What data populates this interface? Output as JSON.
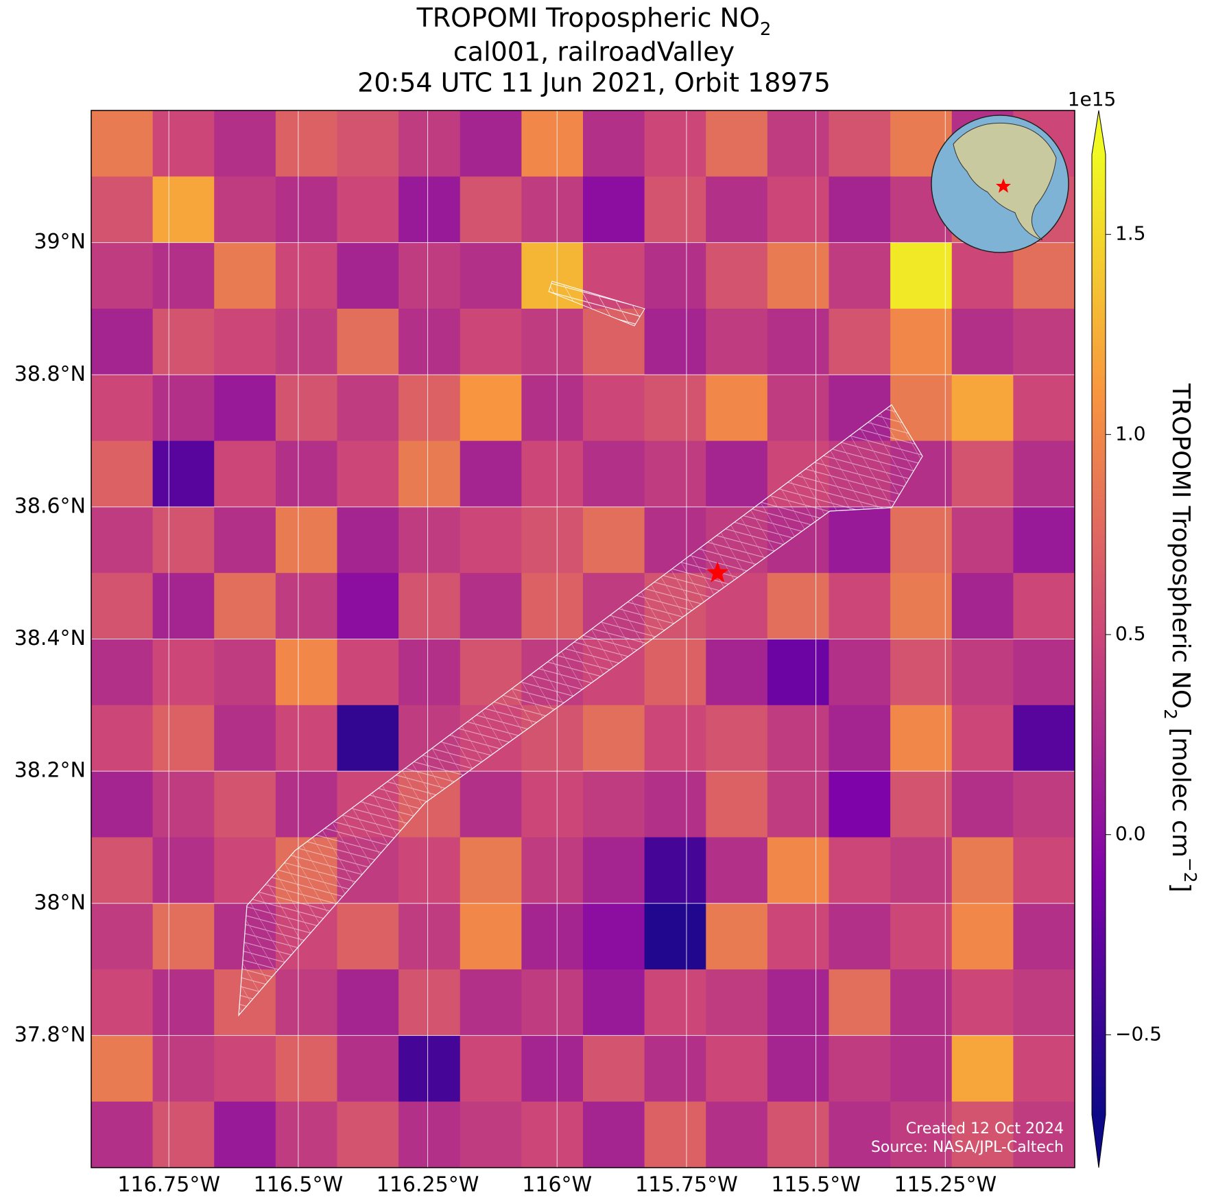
{
  "chart_data": {
    "type": "heatmap",
    "title": {
      "text": "TROPOMI Tropospheric NO",
      "sub": "2"
    },
    "subtitle": [
      "cal001, railroadValley",
      "20:54 UTC 11 Jun 2021, Orbit 18975"
    ],
    "xlim": [
      -116.9,
      -115.0
    ],
    "ylim": [
      37.6,
      39.2
    ],
    "xticks": [
      {
        "value": -116.75,
        "label": "116.75°W"
      },
      {
        "value": -116.5,
        "label": "116.5°W"
      },
      {
        "value": -116.25,
        "label": "116.25°W"
      },
      {
        "value": -116.0,
        "label": "116°W"
      },
      {
        "value": -115.75,
        "label": "115.75°W"
      },
      {
        "value": -115.5,
        "label": "115.5°W"
      },
      {
        "value": -115.25,
        "label": "115.25°W"
      }
    ],
    "yticks": [
      {
        "value": 39.0,
        "label": "39°N"
      },
      {
        "value": 38.8,
        "label": "38.8°N"
      },
      {
        "value": 38.6,
        "label": "38.6°N"
      },
      {
        "value": 38.4,
        "label": "38.4°N"
      },
      {
        "value": 38.2,
        "label": "38.2°N"
      },
      {
        "value": 38.0,
        "label": "38°N"
      },
      {
        "value": 37.8,
        "label": "37.8°N"
      }
    ],
    "grid": true,
    "colormap": "plasma",
    "clim": [
      -0.7,
      1.7
    ],
    "cbar_ticks": [
      {
        "value": -0.5,
        "label": "−0.5"
      },
      {
        "value": 0.0,
        "label": "0.0"
      },
      0.5,
      {
        "value": 1.0,
        "label": "1.0"
      },
      1.5
    ],
    "cbar_offset_label": "1e15",
    "cbar_label": {
      "text": "TROPOMI Tropospheric NO",
      "sub": "2",
      "rest": " [molec cm",
      "sup": "−2",
      "end": "]"
    },
    "site": {
      "lon": -115.69,
      "lat": 38.5
    },
    "cells": {
      "values": [
        [
          0.9,
          0.5,
          0.3,
          0.7,
          0.6,
          0.4,
          0.2,
          1.0,
          0.3,
          0.5,
          0.8,
          0.4,
          0.6,
          0.9,
          0.3,
          0.5
        ],
        [
          0.6,
          1.2,
          0.4,
          0.3,
          0.5,
          0.1,
          0.6,
          0.4,
          0.0,
          0.6,
          0.3,
          0.5,
          0.2,
          0.4,
          0.7,
          0.6
        ],
        [
          0.4,
          0.3,
          0.9,
          0.5,
          0.2,
          0.4,
          0.3,
          1.3,
          0.5,
          0.3,
          0.6,
          0.9,
          0.4,
          1.6,
          0.5,
          0.8
        ],
        [
          0.2,
          0.6,
          0.5,
          0.4,
          0.8,
          0.3,
          0.5,
          0.4,
          0.7,
          0.2,
          0.4,
          0.3,
          0.6,
          1.0,
          0.3,
          0.4
        ],
        [
          0.5,
          0.3,
          0.1,
          0.6,
          0.4,
          0.7,
          1.1,
          0.3,
          0.5,
          0.6,
          1.0,
          0.4,
          0.2,
          0.9,
          1.2,
          0.5
        ],
        [
          0.7,
          -0.3,
          0.5,
          0.3,
          0.5,
          0.9,
          0.2,
          0.5,
          0.3,
          0.4,
          0.2,
          0.5,
          0.4,
          0.3,
          0.6,
          0.3
        ],
        [
          0.4,
          0.6,
          0.3,
          0.9,
          0.2,
          0.4,
          0.5,
          0.6,
          0.8,
          0.3,
          0.4,
          0.3,
          0.1,
          0.8,
          0.4,
          0.1
        ],
        [
          0.6,
          0.2,
          0.8,
          0.4,
          0.0,
          0.6,
          0.3,
          0.7,
          0.4,
          0.6,
          0.5,
          0.8,
          0.5,
          0.9,
          0.2,
          0.5
        ],
        [
          0.3,
          0.5,
          0.4,
          1.0,
          0.5,
          0.3,
          0.6,
          0.4,
          0.5,
          0.7,
          0.2,
          -0.2,
          0.3,
          0.6,
          0.4,
          0.3
        ],
        [
          0.5,
          0.7,
          0.3,
          0.5,
          -0.5,
          0.4,
          0.5,
          0.6,
          0.8,
          0.5,
          0.6,
          0.4,
          0.2,
          1.0,
          0.5,
          -0.3
        ],
        [
          0.2,
          0.4,
          0.6,
          0.3,
          0.5,
          0.7,
          0.3,
          0.5,
          0.4,
          0.3,
          0.7,
          0.4,
          -0.1,
          0.6,
          0.3,
          0.4
        ],
        [
          0.6,
          0.3,
          0.5,
          0.8,
          0.4,
          0.5,
          0.9,
          0.4,
          0.2,
          -0.4,
          0.3,
          1.0,
          0.5,
          0.4,
          0.9,
          0.5
        ],
        [
          0.4,
          0.8,
          0.3,
          0.5,
          0.7,
          0.4,
          1.0,
          0.2,
          0.0,
          -0.6,
          0.9,
          0.5,
          0.3,
          0.5,
          1.0,
          0.3
        ],
        [
          0.5,
          0.3,
          0.7,
          0.4,
          0.2,
          0.6,
          0.3,
          0.4,
          0.1,
          0.5,
          0.4,
          0.2,
          0.8,
          0.3,
          0.5,
          0.4
        ],
        [
          0.9,
          0.4,
          0.5,
          0.7,
          0.3,
          -0.4,
          0.5,
          0.2,
          0.6,
          0.3,
          0.5,
          0.2,
          0.4,
          0.3,
          1.2,
          0.5
        ],
        [
          0.3,
          0.6,
          0.1,
          0.4,
          0.6,
          0.3,
          0.4,
          0.5,
          0.2,
          0.7,
          0.3,
          0.6,
          0.3,
          0.4,
          0.6,
          0.4
        ]
      ]
    },
    "footer": [
      "Created 12 Oct 2024",
      "Source: NASA/JPL-Caltech"
    ]
  }
}
